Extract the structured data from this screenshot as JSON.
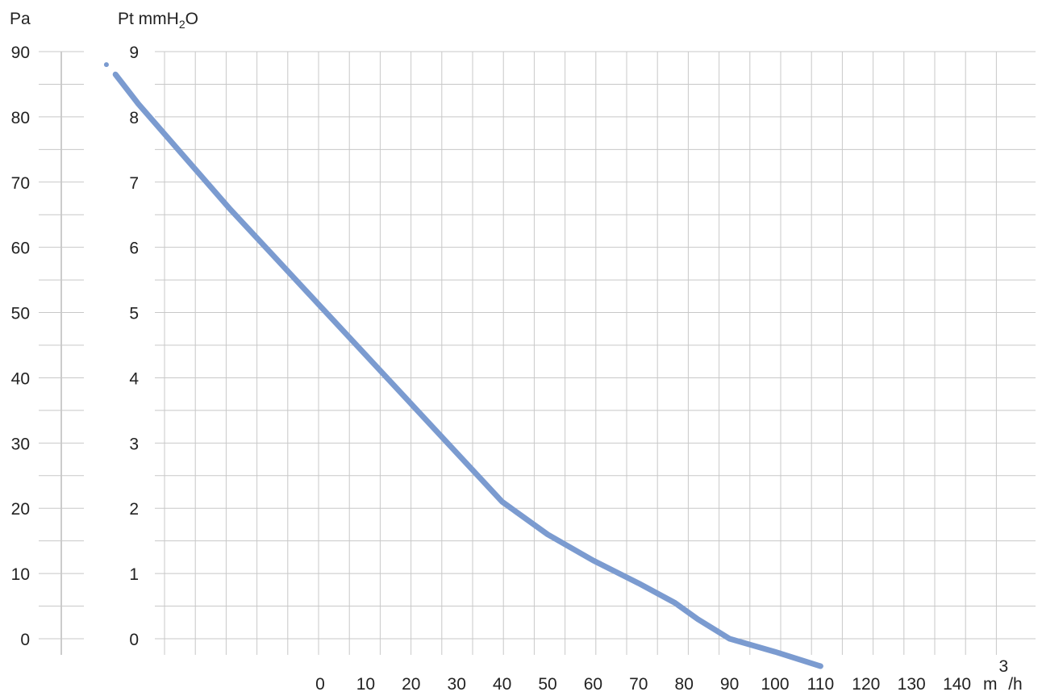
{
  "chart_data": {
    "type": "line",
    "title": "",
    "axes": {
      "left_outer": {
        "label": "Pa",
        "ticks": [
          "90",
          "80",
          "70",
          "60",
          "50",
          "40",
          "30",
          "20",
          "10",
          "0"
        ],
        "ylim": [
          0,
          90
        ]
      },
      "left_inner": {
        "label_prefix": "Pt mmH",
        "label_sub": "2",
        "label_suffix": "O",
        "ticks": [
          "9",
          "8",
          "7",
          "6",
          "5",
          "4",
          "3",
          "2",
          "1",
          "0"
        ],
        "ylim": [
          0,
          9
        ]
      },
      "x": {
        "ticks": [
          "0",
          "10",
          "20",
          "30",
          "40",
          "50",
          "60",
          "70",
          "80",
          "90",
          "100",
          "110",
          "120",
          "130",
          "140"
        ],
        "unit_prefix": "m",
        "unit_sup": "3",
        "unit_suffix": "/h"
      }
    },
    "grid": true,
    "series": [
      {
        "color": "#7b9bd0",
        "points": [
          [
            -47,
            8.8
          ],
          [
            -45,
            8.65
          ],
          [
            -40,
            8.2
          ],
          [
            -30,
            7.4
          ],
          [
            -20,
            6.6
          ],
          [
            -10,
            5.85
          ],
          [
            0,
            5.1
          ],
          [
            10,
            4.35
          ],
          [
            20,
            3.6
          ],
          [
            30,
            2.85
          ],
          [
            40,
            2.1
          ],
          [
            50,
            1.6
          ],
          [
            60,
            1.2
          ],
          [
            70,
            0.85
          ],
          [
            78,
            0.55
          ],
          [
            83,
            0.3
          ],
          [
            90,
            0.0
          ],
          [
            100,
            -0.2
          ],
          [
            110,
            -0.42
          ]
        ]
      }
    ]
  }
}
